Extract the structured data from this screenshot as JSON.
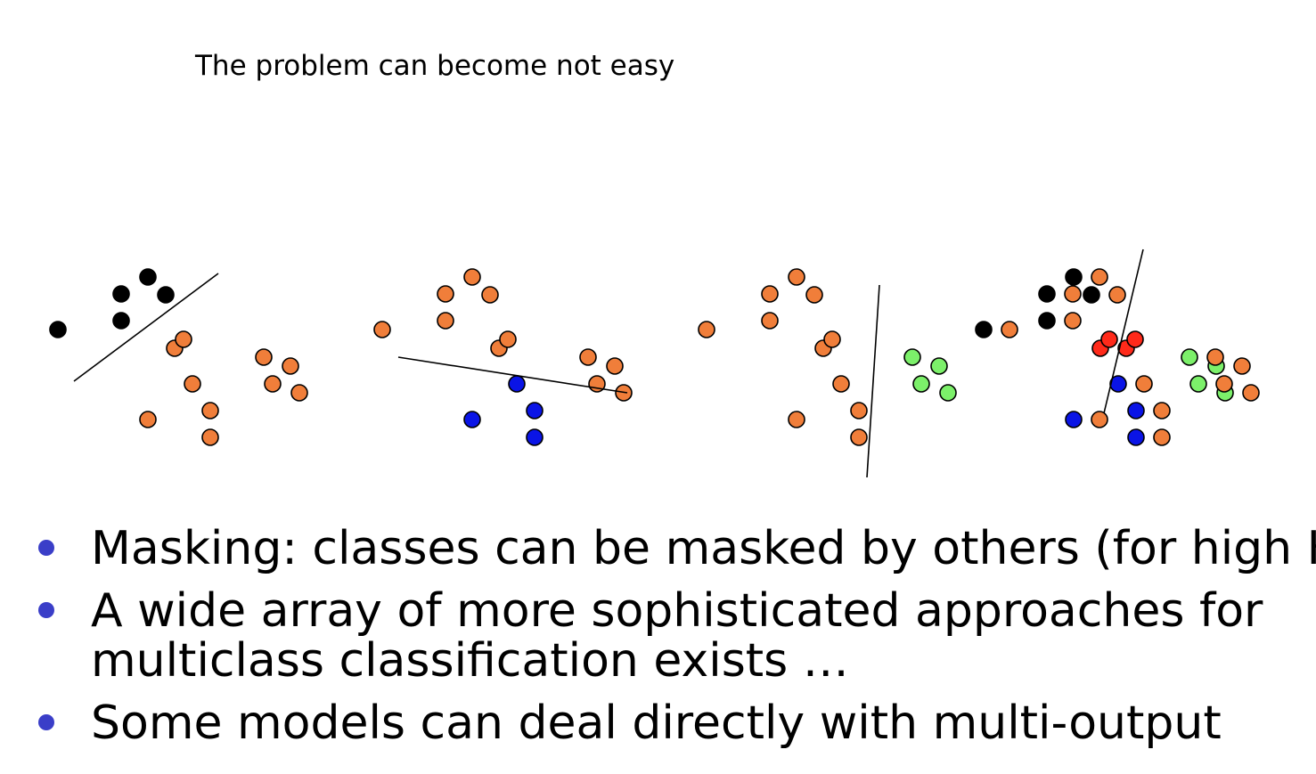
{
  "caption": "The problem can become not easy",
  "colors": {
    "black": "#000000",
    "red": "#ff2a1a",
    "blue": "#0a14e6",
    "green": "#7cf06a",
    "orange": "#f07e3a",
    "bullet": "#3a3ec8"
  },
  "bullets": [
    {
      "lines": [
        "Masking: classes can be masked by others (for high K)"
      ]
    },
    {
      "lines": [
        "A wide array of more sophisticated approaches for",
        "multiclass classification exists …"
      ]
    },
    {
      "lines": [
        "Some models can deal directly with multi-output"
      ]
    }
  ]
}
